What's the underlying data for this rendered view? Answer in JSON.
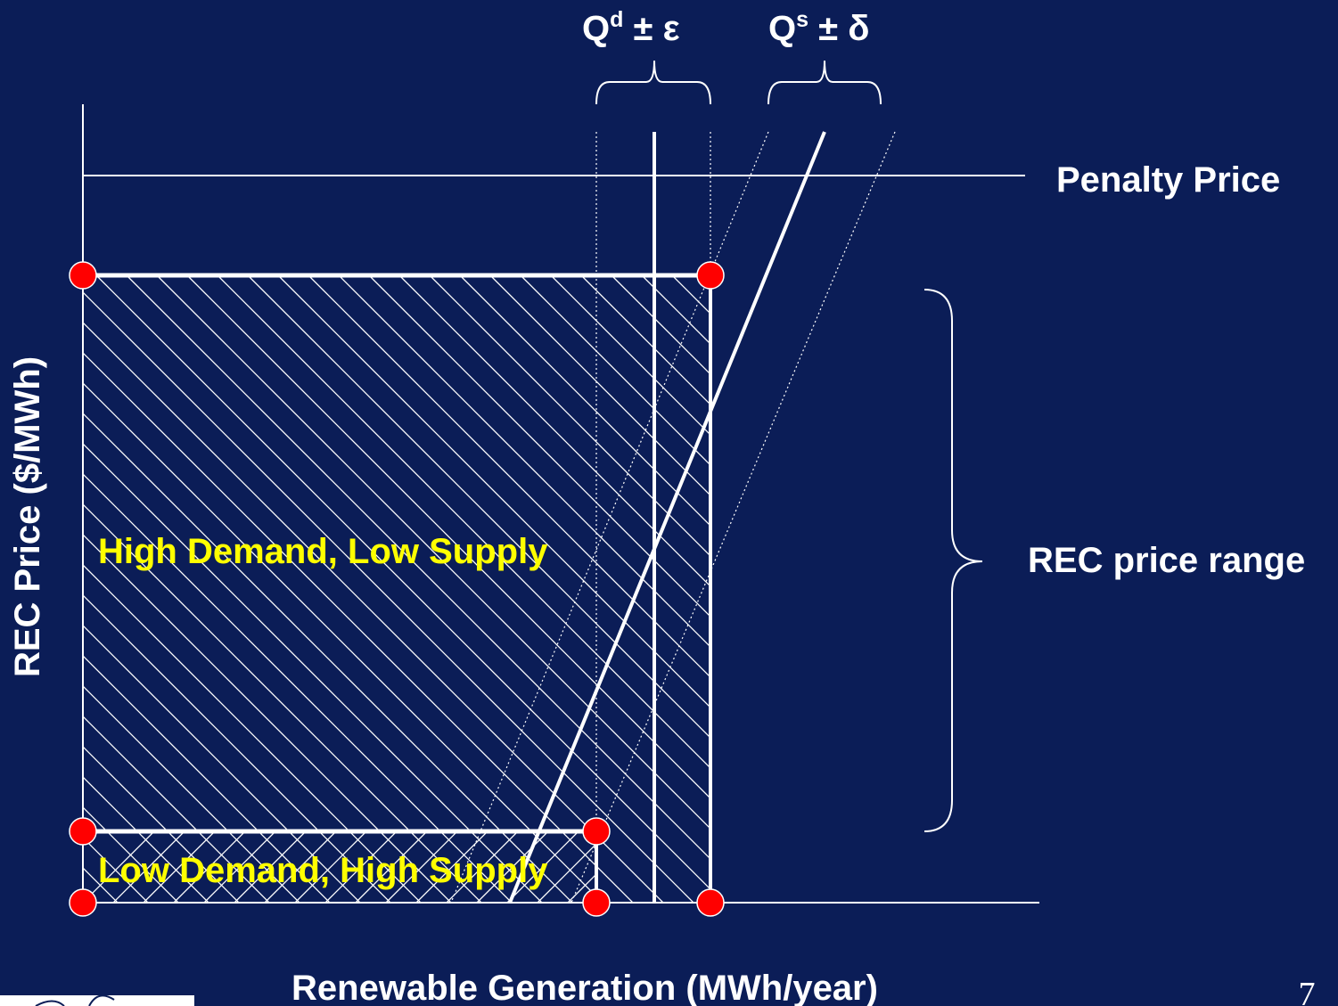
{
  "diagram": {
    "qd_label": {
      "base": "Q",
      "sup": "d",
      "rest": " ± ε"
    },
    "qs_label": {
      "base": "Q",
      "sup": "s",
      "rest": " ± δ"
    },
    "penalty_label": "Penalty Price",
    "rec_range_label": "REC price range",
    "high_region_label": "High Demand, Low Supply",
    "low_region_label": "Low Demand, High Supply",
    "y_axis_label": "REC Price ($/MWh)",
    "x_axis_label": "Renewable Generation (MWh/year)",
    "page_number": "7"
  },
  "colors": {
    "background": "#0b1d57",
    "line": "#ffffff",
    "marker": "#ff0000",
    "region_text": "#ffff00"
  }
}
